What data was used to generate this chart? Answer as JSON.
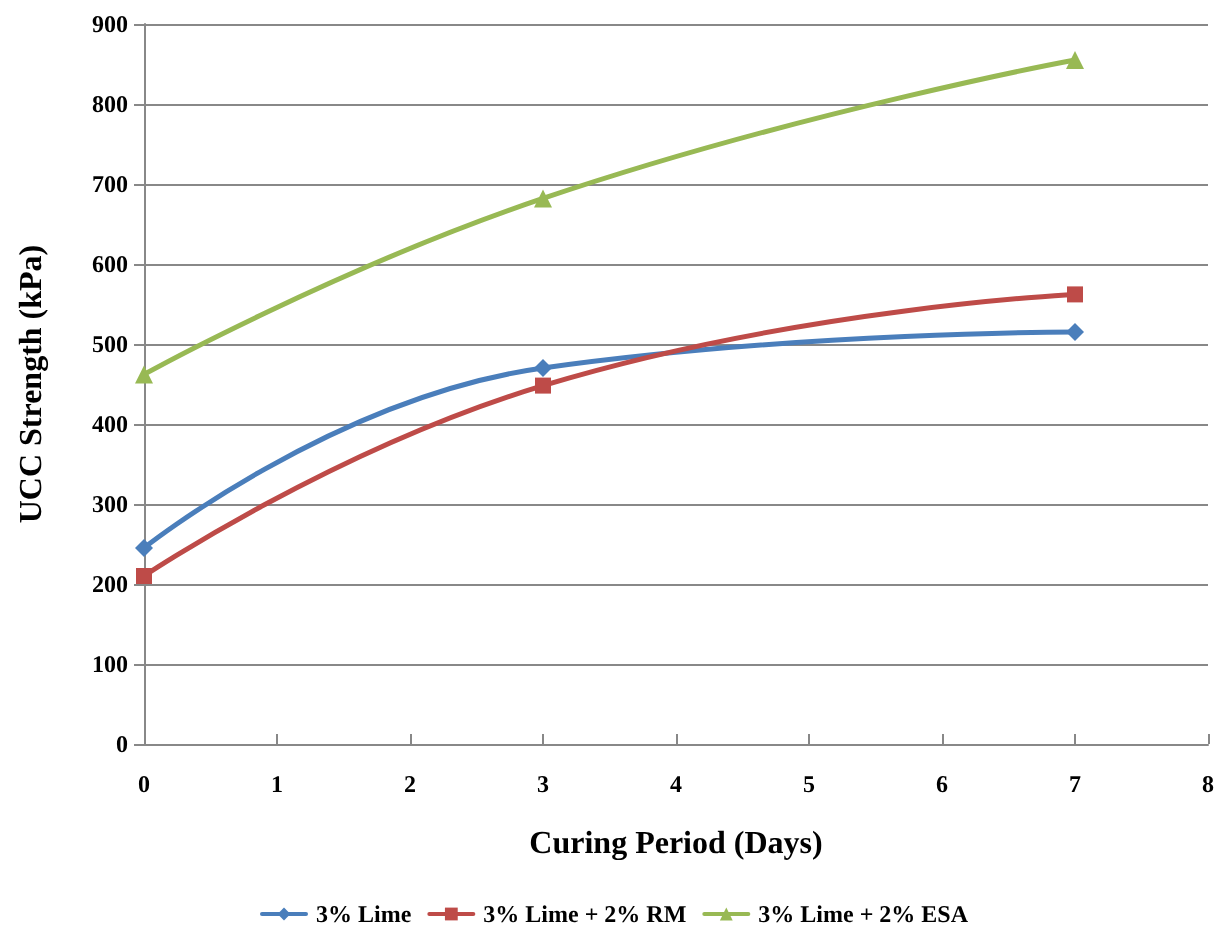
{
  "chart_data": {
    "type": "line",
    "xlabel": "Curing Period (Days)",
    "ylabel": "UCC Strength (kPa)",
    "x": [
      0,
      3,
      7
    ],
    "xlim": [
      0,
      8
    ],
    "xticks": [
      0,
      1,
      2,
      3,
      4,
      5,
      6,
      7,
      8
    ],
    "ylim": [
      0,
      900
    ],
    "yticks": [
      0,
      100,
      200,
      300,
      400,
      500,
      600,
      700,
      800,
      900
    ],
    "grid": "y",
    "legend": "bottom",
    "series": [
      {
        "name": "3% Lime",
        "color": "#4a7ebb",
        "values": [
          245,
          470,
          515
        ],
        "marker": "diamond"
      },
      {
        "name": "3% Lime + 2% RM",
        "color": "#be4b48",
        "values": [
          210,
          448,
          562
        ],
        "marker": "square"
      },
      {
        "name": "3% Lime + 2% ESA",
        "color": "#98b954",
        "values": [
          462,
          682,
          855
        ],
        "marker": "triangle"
      }
    ]
  }
}
